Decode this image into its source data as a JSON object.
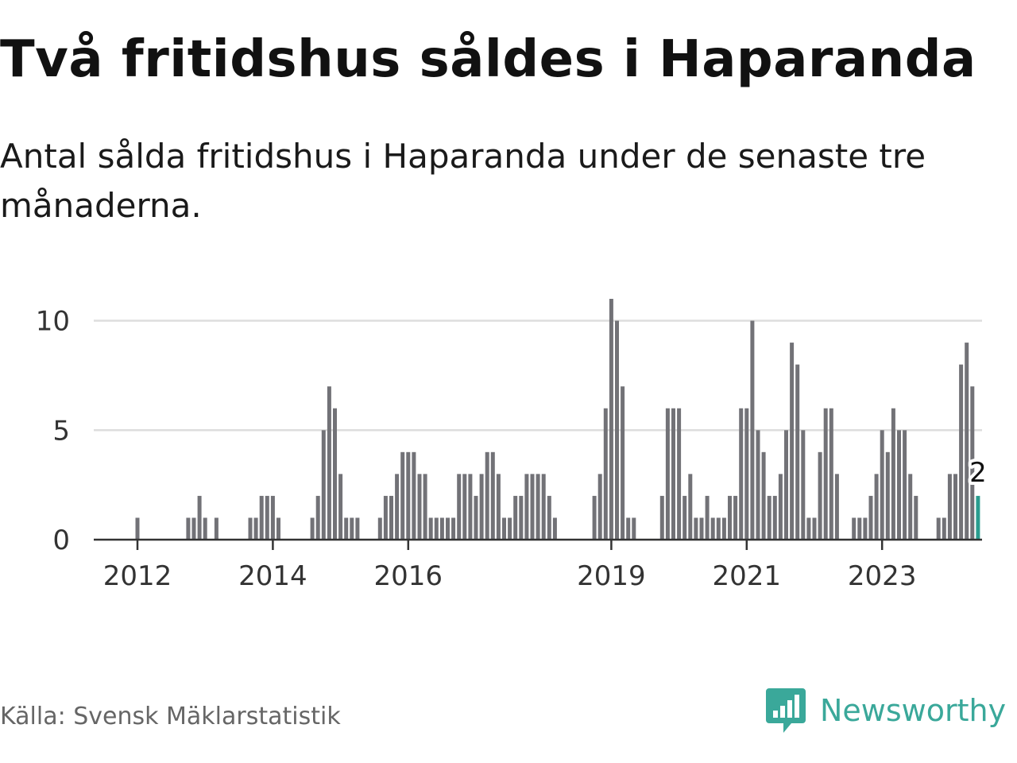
{
  "title": "Två fritidshus såldes i Haparanda",
  "subtitle": "Antal sålda fritidshus i Haparanda under de senaste tre månaderna.",
  "source": "Källa: Svensk Mäklarstatistik",
  "brand": "Newsworthy",
  "colors": {
    "bar": "#727277",
    "highlight": "#2a9d8f",
    "grid": "#dddddd",
    "axis": "#333333",
    "brand": "#3aa89a"
  },
  "chart_data": {
    "type": "bar",
    "title": "Två fritidshus såldes i Haparanda",
    "xlabel": "",
    "ylabel": "",
    "ylim": [
      0,
      11
    ],
    "yticks": [
      0,
      5,
      10
    ],
    "xtick_labels": [
      {
        "label": "2012",
        "month_index": 0
      },
      {
        "label": "2014",
        "month_index": 24
      },
      {
        "label": "2016",
        "month_index": 48
      },
      {
        "label": "2019",
        "month_index": 84
      },
      {
        "label": "2021",
        "month_index": 108
      },
      {
        "label": "2023",
        "month_index": 132
      }
    ],
    "start_month_index": -8,
    "values": [
      0,
      0,
      0,
      0,
      0,
      0,
      0,
      0,
      1,
      0,
      0,
      0,
      0,
      0,
      0,
      0,
      0,
      1,
      1,
      2,
      1,
      0,
      1,
      0,
      0,
      0,
      0,
      0,
      1,
      1,
      2,
      2,
      2,
      1,
      0,
      0,
      0,
      0,
      0,
      1,
      2,
      5,
      7,
      6,
      3,
      1,
      1,
      1,
      0,
      0,
      0,
      1,
      2,
      2,
      3,
      4,
      4,
      4,
      3,
      3,
      1,
      1,
      1,
      1,
      1,
      3,
      3,
      3,
      2,
      3,
      4,
      4,
      3,
      1,
      1,
      2,
      2,
      3,
      3,
      3,
      3,
      2,
      1,
      0,
      0,
      0,
      0,
      0,
      0,
      2,
      3,
      6,
      11,
      10,
      7,
      1,
      1,
      0,
      0,
      0,
      0,
      2,
      6,
      6,
      6,
      2,
      3,
      1,
      1,
      2,
      1,
      1,
      1,
      2,
      2,
      6,
      6,
      10,
      5,
      4,
      2,
      2,
      3,
      5,
      9,
      8,
      5,
      1,
      1,
      4,
      6,
      6,
      3,
      0,
      0,
      1,
      1,
      1,
      2,
      3,
      5,
      4,
      6,
      5,
      5,
      3,
      2,
      0,
      0,
      0,
      1,
      1,
      3,
      3,
      8,
      9,
      7,
      2
    ],
    "highlight_last": true,
    "highlight_label": "2"
  }
}
